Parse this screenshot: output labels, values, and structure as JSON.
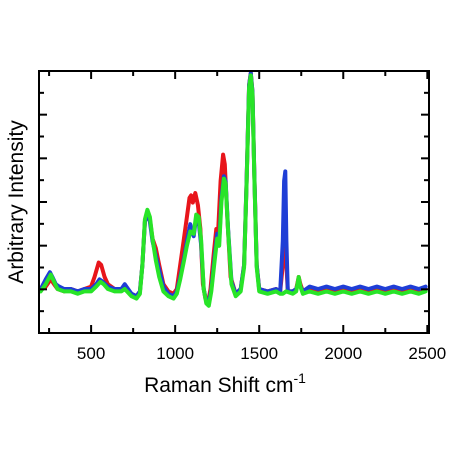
{
  "chart_data": {
    "type": "line",
    "xlabel": "Raman Shift cm",
    "xlabel_superscript": "-1",
    "ylabel": "Arbitrary Intensity",
    "xlim": [
      190,
      2510
    ],
    "ylim": [
      0,
      1
    ],
    "x_ticks": [
      500,
      1000,
      1500,
      2000,
      2500
    ],
    "x_tick_labels": [
      "500",
      "1000",
      "1500",
      "2000",
      "2500"
    ],
    "y_tick_labels_shown": false,
    "grid": false,
    "legend": "none",
    "series": [
      {
        "color": "#e8151b",
        "points": [
          [
            200,
            0.1
          ],
          [
            230,
            0.11
          ],
          [
            260,
            0.14
          ],
          [
            280,
            0.12
          ],
          [
            300,
            0.1
          ],
          [
            340,
            0.09
          ],
          [
            380,
            0.1
          ],
          [
            420,
            0.09
          ],
          [
            460,
            0.1
          ],
          [
            500,
            0.11
          ],
          [
            520,
            0.15
          ],
          [
            545,
            0.21
          ],
          [
            560,
            0.2
          ],
          [
            580,
            0.15
          ],
          [
            600,
            0.12
          ],
          [
            640,
            0.1
          ],
          [
            680,
            0.1
          ],
          [
            700,
            0.11
          ],
          [
            740,
            0.08
          ],
          [
            770,
            0.07
          ],
          [
            790,
            0.09
          ],
          [
            805,
            0.2
          ],
          [
            820,
            0.38
          ],
          [
            835,
            0.42
          ],
          [
            850,
            0.39
          ],
          [
            865,
            0.31
          ],
          [
            885,
            0.27
          ],
          [
            905,
            0.2
          ],
          [
            930,
            0.12
          ],
          [
            960,
            0.09
          ],
          [
            990,
            0.08
          ],
          [
            1010,
            0.1
          ],
          [
            1030,
            0.2
          ],
          [
            1050,
            0.3
          ],
          [
            1070,
            0.4
          ],
          [
            1085,
            0.48
          ],
          [
            1095,
            0.49
          ],
          [
            1105,
            0.46
          ],
          [
            1120,
            0.5
          ],
          [
            1135,
            0.45
          ],
          [
            1150,
            0.35
          ],
          [
            1165,
            0.12
          ],
          [
            1180,
            0.06
          ],
          [
            1195,
            0.04
          ],
          [
            1210,
            0.1
          ],
          [
            1230,
            0.25
          ],
          [
            1245,
            0.35
          ],
          [
            1255,
            0.33
          ],
          [
            1270,
            0.55
          ],
          [
            1285,
            0.66
          ],
          [
            1295,
            0.62
          ],
          [
            1310,
            0.4
          ],
          [
            1330,
            0.15
          ],
          [
            1360,
            0.08
          ],
          [
            1390,
            0.1
          ],
          [
            1410,
            0.2
          ],
          [
            1425,
            0.55
          ],
          [
            1440,
            0.95
          ],
          [
            1450,
            1.0
          ],
          [
            1460,
            0.92
          ],
          [
            1470,
            0.6
          ],
          [
            1485,
            0.2
          ],
          [
            1500,
            0.1
          ],
          [
            1550,
            0.09
          ],
          [
            1600,
            0.1
          ],
          [
            1625,
            0.09
          ],
          [
            1640,
            0.2
          ],
          [
            1648,
            0.38
          ],
          [
            1655,
            0.4
          ],
          [
            1662,
            0.2
          ],
          [
            1670,
            0.09
          ],
          [
            1700,
            0.09
          ],
          [
            1720,
            0.1
          ],
          [
            1735,
            0.15
          ],
          [
            1745,
            0.12
          ],
          [
            1760,
            0.09
          ],
          [
            1800,
            0.1
          ],
          [
            1850,
            0.09
          ],
          [
            1900,
            0.1
          ],
          [
            1950,
            0.09
          ],
          [
            2000,
            0.1
          ],
          [
            2050,
            0.09
          ],
          [
            2100,
            0.1
          ],
          [
            2150,
            0.09
          ],
          [
            2200,
            0.1
          ],
          [
            2250,
            0.09
          ],
          [
            2300,
            0.1
          ],
          [
            2350,
            0.09
          ],
          [
            2400,
            0.1
          ],
          [
            2450,
            0.09
          ],
          [
            2490,
            0.1
          ]
        ]
      },
      {
        "color": "#1f3ed6",
        "points": [
          [
            200,
            0.1
          ],
          [
            230,
            0.14
          ],
          [
            255,
            0.17
          ],
          [
            270,
            0.15
          ],
          [
            290,
            0.12
          ],
          [
            310,
            0.11
          ],
          [
            340,
            0.1
          ],
          [
            380,
            0.1
          ],
          [
            420,
            0.09
          ],
          [
            460,
            0.1
          ],
          [
            500,
            0.1
          ],
          [
            530,
            0.12
          ],
          [
            550,
            0.14
          ],
          [
            570,
            0.13
          ],
          [
            600,
            0.11
          ],
          [
            640,
            0.1
          ],
          [
            680,
            0.1
          ],
          [
            700,
            0.12
          ],
          [
            740,
            0.08
          ],
          [
            770,
            0.07
          ],
          [
            790,
            0.09
          ],
          [
            805,
            0.2
          ],
          [
            820,
            0.38
          ],
          [
            835,
            0.42
          ],
          [
            850,
            0.38
          ],
          [
            865,
            0.3
          ],
          [
            885,
            0.24
          ],
          [
            905,
            0.18
          ],
          [
            930,
            0.11
          ],
          [
            960,
            0.08
          ],
          [
            990,
            0.07
          ],
          [
            1010,
            0.09
          ],
          [
            1030,
            0.15
          ],
          [
            1050,
            0.22
          ],
          [
            1070,
            0.3
          ],
          [
            1090,
            0.37
          ],
          [
            1100,
            0.34
          ],
          [
            1110,
            0.32
          ],
          [
            1125,
            0.4
          ],
          [
            1140,
            0.38
          ],
          [
            1155,
            0.28
          ],
          [
            1170,
            0.1
          ],
          [
            1185,
            0.05
          ],
          [
            1200,
            0.04
          ],
          [
            1215,
            0.1
          ],
          [
            1235,
            0.24
          ],
          [
            1250,
            0.33
          ],
          [
            1262,
            0.3
          ],
          [
            1275,
            0.48
          ],
          [
            1290,
            0.57
          ],
          [
            1300,
            0.55
          ],
          [
            1315,
            0.35
          ],
          [
            1335,
            0.13
          ],
          [
            1360,
            0.08
          ],
          [
            1390,
            0.1
          ],
          [
            1410,
            0.2
          ],
          [
            1425,
            0.55
          ],
          [
            1440,
            0.95
          ],
          [
            1450,
            1.0
          ],
          [
            1460,
            0.92
          ],
          [
            1470,
            0.6
          ],
          [
            1485,
            0.2
          ],
          [
            1500,
            0.1
          ],
          [
            1550,
            0.09
          ],
          [
            1600,
            0.1
          ],
          [
            1625,
            0.09
          ],
          [
            1640,
            0.3
          ],
          [
            1648,
            0.55
          ],
          [
            1655,
            0.59
          ],
          [
            1662,
            0.3
          ],
          [
            1670,
            0.09
          ],
          [
            1700,
            0.09
          ],
          [
            1720,
            0.1
          ],
          [
            1735,
            0.13
          ],
          [
            1745,
            0.11
          ],
          [
            1760,
            0.09
          ],
          [
            1800,
            0.11
          ],
          [
            1850,
            0.1
          ],
          [
            1900,
            0.11
          ],
          [
            1950,
            0.1
          ],
          [
            2000,
            0.11
          ],
          [
            2050,
            0.1
          ],
          [
            2100,
            0.11
          ],
          [
            2150,
            0.1
          ],
          [
            2200,
            0.11
          ],
          [
            2250,
            0.1
          ],
          [
            2300,
            0.11
          ],
          [
            2350,
            0.1
          ],
          [
            2400,
            0.11
          ],
          [
            2450,
            0.1
          ],
          [
            2490,
            0.11
          ]
        ]
      },
      {
        "color": "#28e428",
        "points": [
          [
            200,
            0.09
          ],
          [
            230,
            0.12
          ],
          [
            260,
            0.16
          ],
          [
            280,
            0.13
          ],
          [
            300,
            0.1
          ],
          [
            340,
            0.09
          ],
          [
            380,
            0.09
          ],
          [
            420,
            0.08
          ],
          [
            460,
            0.09
          ],
          [
            500,
            0.09
          ],
          [
            530,
            0.11
          ],
          [
            555,
            0.13
          ],
          [
            575,
            0.12
          ],
          [
            600,
            0.1
          ],
          [
            640,
            0.09
          ],
          [
            680,
            0.09
          ],
          [
            700,
            0.1
          ],
          [
            740,
            0.07
          ],
          [
            770,
            0.06
          ],
          [
            790,
            0.08
          ],
          [
            805,
            0.2
          ],
          [
            820,
            0.39
          ],
          [
            835,
            0.43
          ],
          [
            850,
            0.4
          ],
          [
            865,
            0.31
          ],
          [
            885,
            0.22
          ],
          [
            905,
            0.15
          ],
          [
            930,
            0.09
          ],
          [
            960,
            0.07
          ],
          [
            990,
            0.06
          ],
          [
            1010,
            0.08
          ],
          [
            1030,
            0.14
          ],
          [
            1050,
            0.21
          ],
          [
            1070,
            0.28
          ],
          [
            1090,
            0.34
          ],
          [
            1110,
            0.33
          ],
          [
            1125,
            0.41
          ],
          [
            1140,
            0.4
          ],
          [
            1155,
            0.3
          ],
          [
            1170,
            0.1
          ],
          [
            1185,
            0.04
          ],
          [
            1200,
            0.03
          ],
          [
            1215,
            0.09
          ],
          [
            1235,
            0.22
          ],
          [
            1250,
            0.31
          ],
          [
            1262,
            0.28
          ],
          [
            1275,
            0.46
          ],
          [
            1290,
            0.56
          ],
          [
            1300,
            0.54
          ],
          [
            1315,
            0.34
          ],
          [
            1335,
            0.12
          ],
          [
            1360,
            0.07
          ],
          [
            1390,
            0.09
          ],
          [
            1410,
            0.19
          ],
          [
            1425,
            0.54
          ],
          [
            1440,
            0.94
          ],
          [
            1450,
            0.99
          ],
          [
            1460,
            0.91
          ],
          [
            1470,
            0.59
          ],
          [
            1485,
            0.19
          ],
          [
            1500,
            0.09
          ],
          [
            1550,
            0.08
          ],
          [
            1600,
            0.09
          ],
          [
            1625,
            0.08
          ],
          [
            1640,
            0.08
          ],
          [
            1660,
            0.09
          ],
          [
            1700,
            0.08
          ],
          [
            1720,
            0.09
          ],
          [
            1735,
            0.15
          ],
          [
            1745,
            0.11
          ],
          [
            1760,
            0.08
          ],
          [
            1800,
            0.09
          ],
          [
            1850,
            0.08
          ],
          [
            1900,
            0.09
          ],
          [
            1950,
            0.08
          ],
          [
            2000,
            0.09
          ],
          [
            2050,
            0.08
          ],
          [
            2100,
            0.09
          ],
          [
            2150,
            0.08
          ],
          [
            2200,
            0.09
          ],
          [
            2250,
            0.08
          ],
          [
            2300,
            0.09
          ],
          [
            2350,
            0.08
          ],
          [
            2400,
            0.09
          ],
          [
            2450,
            0.08
          ],
          [
            2490,
            0.09
          ]
        ]
      }
    ]
  }
}
